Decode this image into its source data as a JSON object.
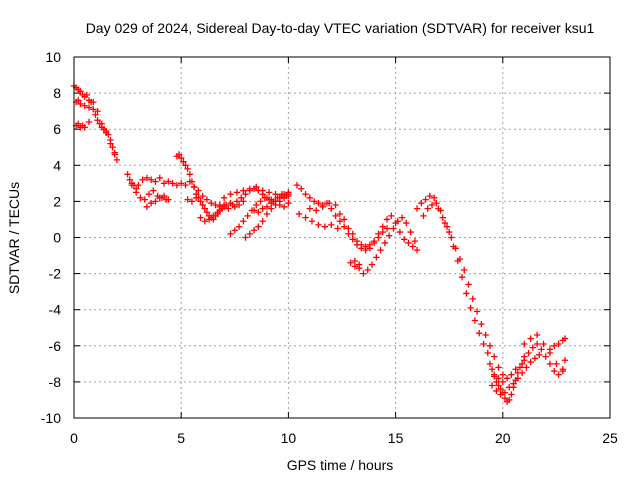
{
  "chart_data": {
    "type": "scatter",
    "title": "Day 029 of 2024, Sidereal Day-to-day VTEC variation (SDTVAR) for receiver ksu1",
    "xlabel": "GPS time / hours",
    "ylabel": "SDTVAR / TECUs",
    "xlim": [
      0,
      25
    ],
    "ylim": [
      -10,
      10
    ],
    "xticks": [
      "0",
      "5",
      "10",
      "15",
      "20",
      "25"
    ],
    "yticks": [
      "-10",
      "-8",
      "-6",
      "-4",
      "-2",
      "0",
      "2",
      "4",
      "6",
      "8",
      "10"
    ],
    "grid": true,
    "series": [
      {
        "name": "SDTVAR",
        "color": "#ff0000",
        "marker": "plus",
        "x": [
          0.0,
          0.1,
          0.2,
          0.3,
          0.4,
          0.5,
          0.6,
          0.7,
          0.8,
          0.9,
          1.0,
          1.1,
          1.2,
          1.3,
          1.4,
          1.5,
          1.6,
          1.7,
          1.8,
          1.9,
          2.0,
          0.1,
          0.2,
          0.3,
          0.5,
          0.7,
          0.9,
          1.1,
          1.3,
          1.5,
          1.7,
          1.9,
          0.1,
          0.2,
          0.3,
          0.4,
          0.5,
          0.7,
          2.5,
          2.6,
          2.7,
          2.8,
          2.9,
          3.0,
          3.2,
          3.4,
          3.6,
          3.8,
          4.0,
          4.2,
          4.4,
          4.6,
          4.8,
          5.0,
          5.2,
          5.4,
          5.6,
          5.8,
          6.0,
          6.2,
          6.4,
          6.6,
          6.8,
          7.0,
          2.7,
          2.9,
          3.1,
          3.3,
          3.5,
          3.7,
          3.9,
          4.1,
          4.3,
          3.4,
          3.6,
          3.8,
          4.0,
          4.2,
          4.4,
          4.8,
          4.9,
          5.0,
          5.1,
          5.2,
          5.3,
          5.4,
          5.5,
          5.6,
          5.7,
          5.8,
          5.9,
          6.0,
          6.1,
          6.2,
          6.3,
          6.4,
          6.5,
          6.6,
          6.7,
          6.8,
          5.3,
          5.5,
          5.7,
          5.9,
          6.1,
          6.3,
          6.5,
          6.7,
          6.9,
          7.1,
          7.3,
          7.5,
          7.7,
          7.9,
          6.8,
          7.0,
          7.2,
          7.4,
          7.6,
          7.8,
          8.0,
          8.2,
          8.4,
          8.6,
          8.8,
          9.0,
          9.2,
          9.4,
          9.6,
          9.8,
          10.0,
          7.3,
          7.5,
          7.7,
          7.9,
          8.1,
          8.3,
          8.5,
          8.7,
          8.9,
          9.1,
          9.3,
          9.5,
          9.7,
          9.9,
          8.0,
          8.2,
          8.4,
          8.6,
          8.8,
          9.0,
          9.2,
          9.4,
          9.6,
          9.8,
          10.0,
          8.4,
          8.6,
          8.8,
          9.0,
          9.2,
          9.4,
          9.6,
          9.8,
          10.0,
          7.0,
          7.3,
          7.6,
          7.9,
          8.2,
          8.5,
          8.8,
          9.1,
          9.4,
          9.7,
          10.0,
          10.4,
          10.6,
          10.8,
          11.0,
          11.2,
          11.4,
          11.6,
          11.8,
          12.0,
          12.2,
          12.4,
          10.5,
          10.8,
          11.1,
          11.4,
          11.7,
          12.0,
          12.3,
          11.0,
          11.3,
          11.6,
          11.9,
          12.2,
          12.4,
          12.6,
          12.8,
          13.0,
          13.2,
          13.4,
          13.6,
          13.8,
          14.0,
          14.2,
          14.4,
          14.6,
          14.8,
          15.0,
          15.2,
          15.4,
          15.6,
          15.8,
          16.0,
          12.6,
          12.8,
          13.0,
          13.2,
          13.4,
          13.6,
          13.8,
          14.0,
          14.2,
          14.4,
          14.6,
          13.1,
          13.3,
          13.5,
          13.7,
          13.9,
          14.1,
          14.3,
          14.5,
          14.7,
          14.9,
          15.1,
          15.3,
          15.5,
          15.7,
          15.9,
          12.9,
          13.1,
          13.3,
          16.0,
          16.2,
          16.4,
          16.6,
          16.8,
          17.0,
          17.2,
          17.4,
          17.6,
          17.8,
          18.0,
          18.2,
          18.4,
          18.6,
          18.8,
          19.0,
          19.2,
          19.4,
          19.6,
          19.8,
          20.0,
          16.3,
          16.5,
          16.7,
          16.9,
          17.1,
          17.3,
          17.5,
          17.7,
          17.9,
          18.1,
          18.3,
          18.5,
          18.7,
          18.9,
          19.1,
          19.3,
          19.4,
          19.5,
          19.6,
          19.7,
          19.8,
          19.9,
          20.0,
          20.1,
          20.2,
          20.3,
          20.4,
          20.5,
          20.6,
          20.7,
          20.8,
          20.9,
          21.0,
          19.5,
          19.7,
          19.9,
          20.1,
          20.3,
          20.5,
          20.7,
          20.9,
          21.1,
          21.3,
          21.5,
          21.7,
          19.6,
          19.8,
          20.0,
          20.2,
          20.4,
          20.6,
          21.0,
          21.2,
          21.4,
          21.6,
          21.8,
          22.0,
          22.2,
          22.4,
          22.6,
          22.8,
          22.9,
          21.0,
          21.3,
          21.6,
          21.9,
          22.2,
          22.5,
          22.8,
          22.2,
          22.4,
          22.6,
          22.8,
          22.9
        ],
        "y": [
          8.4,
          8.3,
          8.2,
          8.1,
          7.9,
          7.8,
          7.9,
          7.6,
          7.5,
          7.1,
          6.8,
          6.5,
          6.3,
          6.1,
          6.0,
          5.9,
          5.7,
          5.4,
          5.0,
          4.6,
          4.3,
          7.5,
          7.6,
          7.4,
          7.3,
          7.2,
          7.5,
          7.0,
          6.3,
          5.8,
          5.2,
          4.7,
          6.2,
          6.3,
          6.1,
          6.2,
          6.1,
          6.4,
          3.5,
          3.2,
          3.0,
          2.9,
          2.7,
          2.9,
          3.2,
          3.3,
          3.2,
          3.1,
          3.3,
          3.0,
          3.1,
          3.0,
          2.9,
          3.0,
          2.9,
          3.1,
          2.8,
          2.6,
          2.3,
          2.1,
          1.9,
          1.8,
          1.7,
          1.8,
          2.9,
          2.5,
          2.2,
          2.1,
          2.4,
          2.6,
          2.3,
          2.2,
          2.1,
          1.7,
          1.9,
          2.0,
          2.2,
          2.3,
          2.1,
          4.5,
          4.6,
          4.4,
          4.2,
          4.0,
          3.8,
          3.5,
          3.1,
          2.8,
          2.4,
          2.2,
          2.0,
          1.8,
          1.6,
          1.4,
          1.2,
          1.1,
          1.0,
          1.2,
          1.3,
          1.5,
          2.1,
          2.0,
          2.2,
          1.1,
          0.9,
          1.0,
          1.2,
          1.4,
          1.6,
          1.8,
          1.9,
          1.7,
          1.8,
          2.0,
          1.8,
          1.7,
          1.6,
          1.8,
          2.0,
          2.2,
          2.4,
          2.6,
          2.7,
          2.6,
          2.4,
          2.2,
          2.1,
          2.0,
          2.2,
          2.4,
          2.5,
          0.2,
          0.4,
          0.6,
          0.9,
          1.2,
          1.5,
          1.8,
          2.0,
          2.2,
          2.1,
          2.0,
          2.2,
          2.4,
          2.3,
          0.0,
          0.2,
          0.4,
          0.6,
          0.9,
          1.3,
          1.6,
          1.8,
          2.0,
          2.2,
          2.3,
          1.5,
          1.4,
          1.6,
          1.7,
          1.9,
          2.0,
          1.8,
          1.7,
          1.9,
          2.2,
          2.4,
          2.5,
          2.6,
          2.7,
          2.8,
          2.6,
          2.5,
          2.4,
          2.3,
          2.4,
          2.9,
          2.7,
          2.4,
          2.2,
          2.0,
          1.9,
          1.8,
          1.9,
          1.6,
          1.2,
          0.9,
          1.3,
          1.1,
          0.9,
          0.7,
          0.6,
          0.7,
          0.5,
          1.6,
          1.5,
          1.7,
          1.9,
          1.8,
          1.3,
          1.0,
          0.5,
          0.2,
          -0.2,
          -0.4,
          -0.5,
          -0.4,
          -0.2,
          0.2,
          0.6,
          1.0,
          1.2,
          0.8,
          0.3,
          -0.1,
          -0.3,
          -0.5,
          -0.7,
          0.6,
          0.2,
          -0.1,
          -0.4,
          -0.6,
          -0.7,
          -0.6,
          -0.3,
          0.0,
          0.3,
          0.5,
          -1.3,
          -1.7,
          -2.0,
          -1.8,
          -1.5,
          -1.1,
          -0.7,
          -0.3,
          0.1,
          0.5,
          0.9,
          1.1,
          0.8,
          0.3,
          -0.2,
          -1.4,
          -1.6,
          -1.5,
          1.6,
          1.9,
          2.1,
          2.3,
          2.2,
          1.6,
          1.1,
          0.6,
          0.0,
          -0.6,
          -1.2,
          -1.8,
          -2.6,
          -3.4,
          -4.1,
          -4.8,
          -5.4,
          -6.0,
          -6.6,
          -7.2,
          -7.6,
          1.2,
          1.6,
          1.8,
          1.9,
          1.5,
          0.8,
          0.3,
          -0.5,
          -1.3,
          -2.2,
          -3.1,
          -3.9,
          -4.6,
          -5.3,
          -5.9,
          -6.4,
          -7.0,
          -7.3,
          -7.7,
          -8.0,
          -8.2,
          -8.4,
          -8.6,
          -8.9,
          -9.1,
          -9.0,
          -8.7,
          -8.3,
          -7.9,
          -7.5,
          -7.2,
          -7.0,
          -6.8,
          -8.2,
          -8.5,
          -8.7,
          -8.6,
          -8.3,
          -8.1,
          -7.8,
          -7.5,
          -7.2,
          -6.9,
          -6.7,
          -6.5,
          -7.6,
          -7.8,
          -8.0,
          -7.8,
          -7.6,
          -7.3,
          -6.6,
          -6.4,
          -6.1,
          -5.9,
          -6.2,
          -6.6,
          -7.0,
          -7.4,
          -7.6,
          -7.3,
          -6.8,
          -5.9,
          -5.6,
          -5.4,
          -5.9,
          -6.4,
          -7.0,
          -7.4,
          -6.2,
          -6.0,
          -5.9,
          -5.7,
          -5.6
        ]
      }
    ]
  }
}
